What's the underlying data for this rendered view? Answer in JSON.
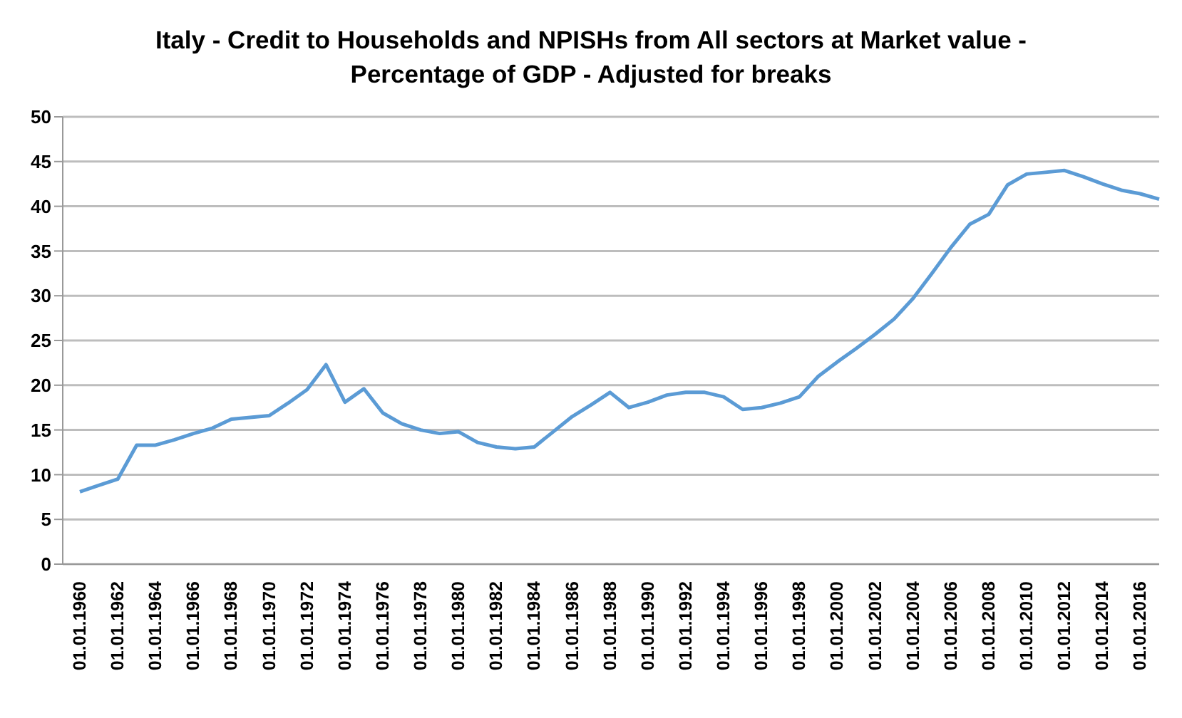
{
  "chart_data": {
    "type": "line",
    "title": "Italy - Credit to Households and NPISHs from All sectors at Market value - Percentage of GDP - Adjusted for breaks",
    "categories": [
      "01.01.1960",
      null,
      "01.01.1962",
      null,
      "01.01.1964",
      null,
      "01.01.1966",
      null,
      "01.01.1968",
      null,
      "01.01.1970",
      null,
      "01.01.1972",
      null,
      "01.01.1974",
      null,
      "01.01.1976",
      null,
      "01.01.1978",
      null,
      "01.01.1980",
      null,
      "01.01.1982",
      null,
      "01.01.1984",
      null,
      "01.01.1986",
      null,
      "01.01.1988",
      null,
      "01.01.1990",
      null,
      "01.01.1992",
      null,
      "01.01.1994",
      null,
      "01.01.1996",
      null,
      "01.01.1998",
      null,
      "01.01.2000",
      null,
      "01.01.2002",
      null,
      "01.01.2004",
      null,
      "01.01.2006",
      null,
      "01.01.2008",
      null,
      "01.01.2010",
      null,
      "01.01.2012",
      null,
      "01.01.2014",
      null,
      "01.01.2016",
      null
    ],
    "series": [
      {
        "color": "#5b9bd5",
        "values": [
          8.1,
          8.8,
          9.5,
          13.3,
          13.3,
          13.9,
          14.6,
          15.2,
          16.2,
          16.4,
          16.6,
          18.0,
          19.5,
          22.3,
          18.1,
          19.6,
          16.9,
          15.7,
          15.0,
          14.6,
          14.8,
          13.6,
          13.1,
          12.9,
          13.1,
          14.8,
          16.5,
          17.8,
          19.2,
          17.5,
          18.1,
          18.9,
          19.2,
          19.2,
          18.7,
          17.3,
          17.5,
          18.0,
          18.7,
          21.0,
          22.6,
          24.1,
          25.7,
          27.4,
          29.7,
          32.5,
          35.4,
          38.0,
          39.1,
          42.4,
          43.6,
          43.8,
          44.0,
          43.3,
          42.5,
          41.8,
          41.4,
          40.8
        ]
      }
    ],
    "ylim": [
      0,
      50
    ],
    "yticks": [
      0,
      5,
      10,
      15,
      20,
      25,
      30,
      35,
      40,
      45,
      50
    ],
    "grid": "y",
    "legend": false,
    "marker": "none",
    "line_style": "solid"
  }
}
